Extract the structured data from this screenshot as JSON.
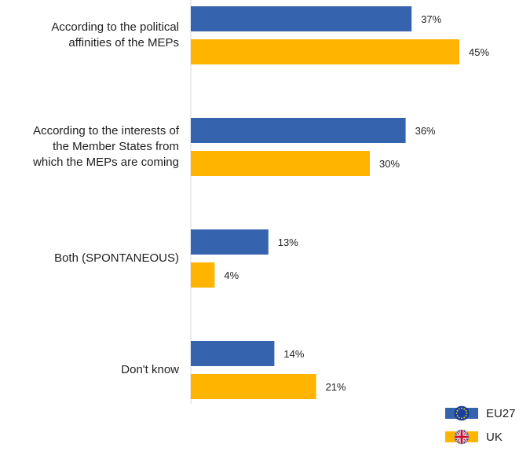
{
  "chart_data": {
    "type": "bar",
    "orientation": "horizontal",
    "categories": [
      "According to the political affinities of the MEPs",
      "According to the interests of the Member States from which the MEPs are coming",
      "Both (SPONTANEOUS)",
      "Don't know"
    ],
    "category_lines": [
      [
        "According to the political",
        "affinities of the MEPs"
      ],
      [
        "According to the interests of",
        "the Member States from",
        "which the MEPs are coming"
      ],
      [
        "Both (SPONTANEOUS)"
      ],
      [
        "Don't know"
      ]
    ],
    "series": [
      {
        "name": "EU27",
        "values": [
          37,
          36,
          13,
          14
        ],
        "labels": [
          "37%",
          "36%",
          "13%",
          "14%"
        ],
        "color": "#3563ad"
      },
      {
        "name": "UK",
        "values": [
          45,
          30,
          4,
          21
        ],
        "labels": [
          "45%",
          "30%",
          "4%",
          "21%"
        ],
        "color": "#ffb400"
      }
    ],
    "unit": "%",
    "xlim": [
      0,
      50
    ],
    "grid": false,
    "legend_position": "bottom-right"
  },
  "legend": {
    "items": [
      {
        "label": "EU27",
        "icon": "eu-flag-icon"
      },
      {
        "label": "UK",
        "icon": "uk-flag-icon"
      }
    ]
  }
}
